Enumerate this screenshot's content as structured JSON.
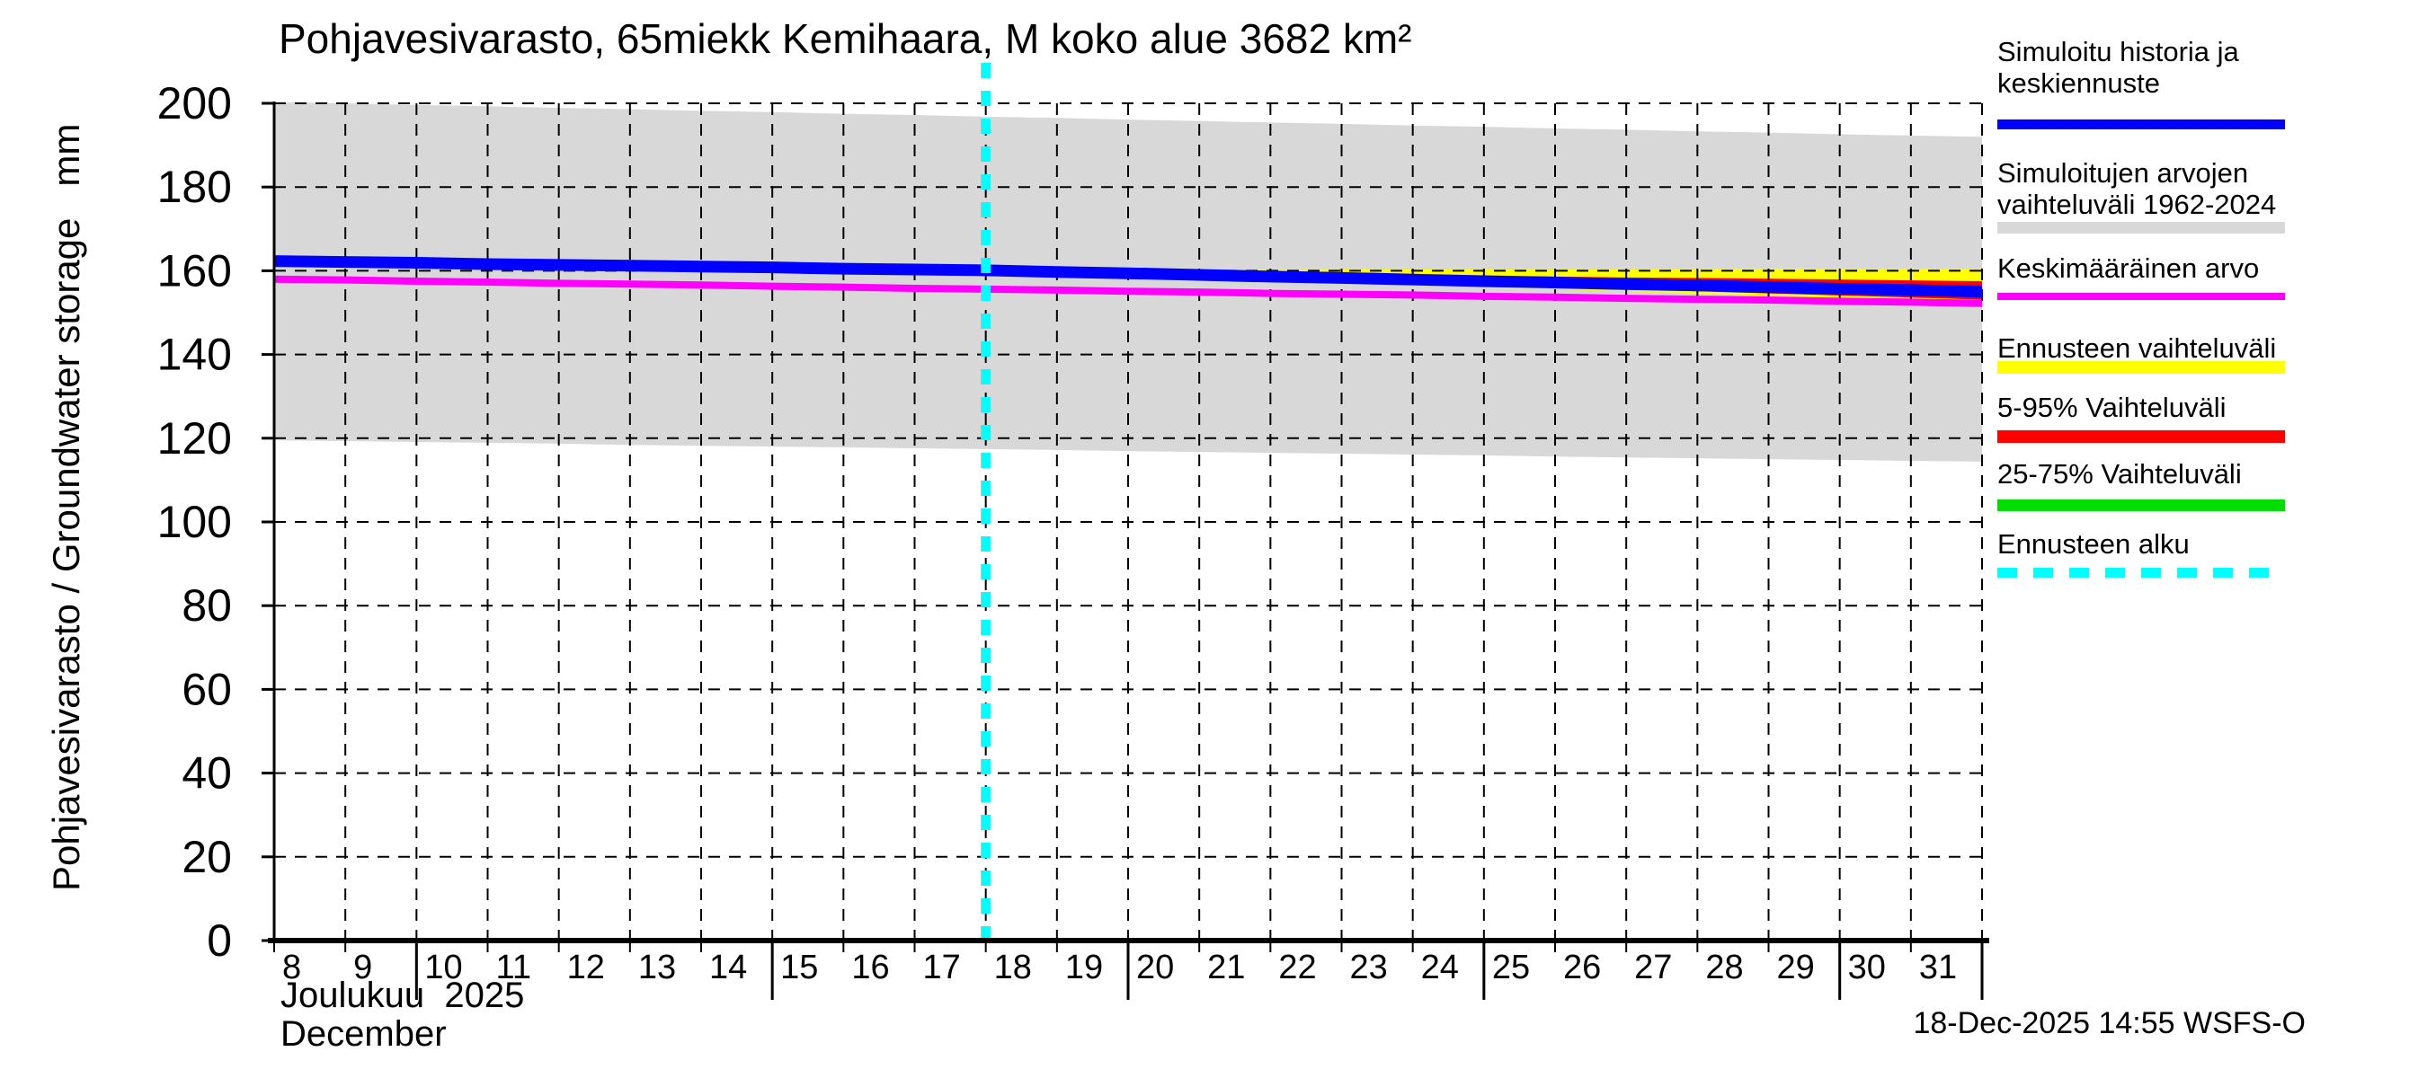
{
  "header": {
    "title": "Pohjavesivarasto, 65miekk Kemihaara, M koko alue 3682 km²"
  },
  "footer": {
    "timestamp": "18-Dec-2025 14:55 WSFS-O"
  },
  "axis_labels": {
    "ylabel": "Pohjavesivarasto / Groundwater storage",
    "y_unit": "mm",
    "xlabel_line1": "Joulukuu  2025",
    "xlabel_line2": "December"
  },
  "chart_data": {
    "type": "line",
    "title": "Pohjavesivarasto, 65miekk Kemihaara, M koko alue 3682 km²",
    "ylabel": "Pohjavesivarasto / Groundwater storage",
    "y_unit": "mm",
    "xlabel": "Joulukuu 2025 / December",
    "ylim": [
      0,
      200
    ],
    "yticks": [
      0,
      20,
      40,
      60,
      80,
      100,
      120,
      140,
      160,
      180,
      200
    ],
    "x_days": [
      8,
      9,
      10,
      11,
      12,
      13,
      14,
      15,
      16,
      17,
      18,
      19,
      20,
      21,
      22,
      23,
      24,
      25,
      26,
      27,
      28,
      29,
      30,
      31,
      32
    ],
    "xtick_labels": [
      "8",
      "9",
      "10",
      "11",
      "12",
      "13",
      "14",
      "15",
      "16",
      "17",
      "18",
      "19",
      "20",
      "21",
      "22",
      "23",
      "24",
      "25",
      "26",
      "27",
      "28",
      "29",
      "30",
      "31"
    ],
    "long_tick_days": [
      10,
      15,
      20,
      25,
      30,
      32
    ],
    "forecast_start_day": 18,
    "grid": "dashed",
    "legend_position": "right",
    "colors": {
      "median": "#0000ff",
      "mean": "#ff00ff",
      "history_band": "#d8d8d8",
      "forecast_band": "#ffff00",
      "band_5_95": "#ff0000",
      "band_25_75": "#00dd00",
      "forecast_start": "#00ffff"
    },
    "series": [
      {
        "name": "simulated-history-and-median-forecast",
        "color": "#0000ff",
        "values": [
          162.3,
          162.1,
          161.9,
          161.6,
          161.4,
          161.2,
          161.0,
          160.8,
          160.5,
          160.3,
          160.1,
          159.7,
          159.4,
          159.0,
          158.6,
          158.3,
          157.9,
          157.5,
          157.2,
          156.8,
          156.5,
          156.1,
          155.7,
          155.4,
          155.0
        ]
      },
      {
        "name": "long-term-mean-value",
        "color": "#ff00ff",
        "values": [
          158.0,
          157.8,
          157.5,
          157.3,
          157.0,
          156.8,
          156.6,
          156.3,
          156.1,
          155.8,
          155.6,
          155.4,
          155.1,
          154.9,
          154.6,
          154.4,
          154.2,
          153.9,
          153.7,
          153.4,
          153.2,
          153.0,
          152.7,
          152.5,
          152.2
        ]
      }
    ],
    "bands": [
      {
        "name": "simulated-range-1962-2024",
        "color": "#d8d8d8",
        "from_day": 8,
        "upper": [
          200.3,
          200.0,
          199.6,
          199.3,
          198.9,
          198.6,
          198.2,
          197.9,
          197.5,
          197.2,
          196.8,
          196.5,
          196.1,
          195.8,
          195.4,
          195.1,
          194.7,
          194.4,
          194.0,
          193.7,
          193.3,
          193.0,
          192.6,
          192.3,
          192.0
        ],
        "lower": [
          119.5,
          119.3,
          119.1,
          118.9,
          118.7,
          118.4,
          118.2,
          118.0,
          117.8,
          117.6,
          117.4,
          117.2,
          116.9,
          116.7,
          116.5,
          116.3,
          116.1,
          115.9,
          115.6,
          115.4,
          115.2,
          115.0,
          114.8,
          114.6,
          114.4
        ]
      },
      {
        "name": "forecast-range",
        "color": "#ffff00",
        "from_day": 18,
        "upper": [
          160.1,
          160.1,
          160.2,
          160.2,
          160.2,
          160.3,
          160.3,
          160.3,
          160.3,
          160.3,
          160.4,
          160.4,
          160.4,
          160.4,
          160.4
        ],
        "lower": [
          160.0,
          159.5,
          158.9,
          158.4,
          157.8,
          157.3,
          156.7,
          156.2,
          155.6,
          155.1,
          154.5,
          154.0,
          153.4,
          152.9,
          152.3
        ]
      },
      {
        "name": "range-5-95",
        "color": "#ff0000",
        "from_day": 18,
        "upper": [
          160.1,
          159.9,
          159.7,
          159.5,
          159.3,
          159.2,
          159.0,
          158.8,
          158.6,
          158.4,
          158.3,
          158.1,
          157.9,
          157.7,
          157.5
        ],
        "lower": [
          160.0,
          159.5,
          159.0,
          158.5,
          158.0,
          157.5,
          157.0,
          156.6,
          156.1,
          155.6,
          155.1,
          154.6,
          154.1,
          153.6,
          153.1
        ]
      },
      {
        "name": "range-25-75",
        "color": "#00dd00",
        "from_day": 18,
        "upper": [
          160.1,
          159.8,
          159.5,
          159.3,
          159.0,
          158.7,
          158.4,
          158.2,
          157.9,
          157.6,
          157.3,
          157.1,
          156.8,
          156.5,
          156.2
        ],
        "lower": [
          160.0,
          159.6,
          159.2,
          158.8,
          158.3,
          157.9,
          157.5,
          157.1,
          156.7,
          156.2,
          155.8,
          155.4,
          155.0,
          154.6,
          154.2
        ]
      }
    ],
    "legend": [
      {
        "lines": [
          "Simuloitu historia ja",
          "keskiennuste"
        ],
        "color": "#0000ff",
        "swatch": "line"
      },
      {
        "lines": [
          "Simuloitujen arvojen",
          "vaihteluväli 1962-2024"
        ],
        "color": "#d8d8d8",
        "swatch": "band"
      },
      {
        "lines": [
          "Keskimääräinen arvo"
        ],
        "color": "#ff00ff",
        "swatch": "thin-line"
      },
      {
        "lines": [
          "Ennusteen vaihteluväli"
        ],
        "color": "#ffff00",
        "swatch": "band"
      },
      {
        "lines": [
          "5-95% Vaihteluväli"
        ],
        "color": "#ff0000",
        "swatch": "band"
      },
      {
        "lines": [
          "25-75% Vaihteluväli"
        ],
        "color": "#00dd00",
        "swatch": "band"
      },
      {
        "lines": [
          "Ennusteen alku"
        ],
        "color": "#00ffff",
        "swatch": "dashed-line"
      }
    ]
  }
}
